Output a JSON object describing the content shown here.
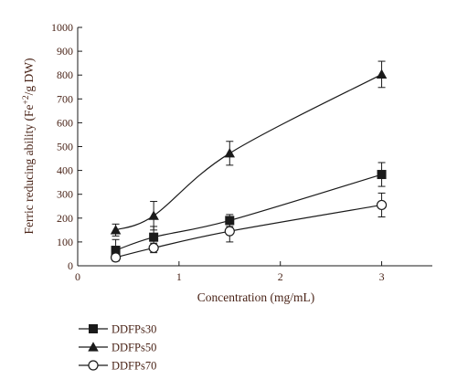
{
  "chart_data": {
    "type": "line",
    "title": "",
    "xlabel": "Concentration (mg/mL)",
    "ylabel": "Ferric reducing ability (Fe+2/g DW)",
    "ylabel_parts": {
      "prefix": "Ferric reducing ability (Fe",
      "sup": "+2",
      "suffix": "/g DW)"
    },
    "xlim": [
      0,
      3.5
    ],
    "ylim": [
      0,
      1000
    ],
    "x_ticks": [
      0,
      1,
      2,
      3
    ],
    "y_ticks": [
      0,
      100,
      200,
      300,
      400,
      500,
      600,
      700,
      800,
      900,
      1000
    ],
    "x_tick_labels": [
      "0",
      "1",
      "2",
      "3"
    ],
    "y_tick_labels": [
      "0",
      "100",
      "200",
      "300",
      "400",
      "500",
      "600",
      "700",
      "800",
      "900",
      "1000"
    ],
    "x": [
      0.375,
      0.75,
      1.5,
      3
    ],
    "grid": false,
    "legend_position": "bottom-left",
    "series": [
      {
        "name": "DDFPs30",
        "marker": "square",
        "values": [
          65,
          120,
          190,
          383
        ],
        "errors": [
          45,
          45,
          25,
          50
        ]
      },
      {
        "name": "DDFPs50",
        "marker": "triangle",
        "values": [
          150,
          210,
          472,
          803
        ],
        "errors": [
          25,
          60,
          50,
          55
        ]
      },
      {
        "name": "DDFPs70",
        "marker": "circle",
        "values": [
          35,
          75,
          145,
          255
        ],
        "errors": [
          15,
          20,
          45,
          50
        ]
      }
    ]
  }
}
